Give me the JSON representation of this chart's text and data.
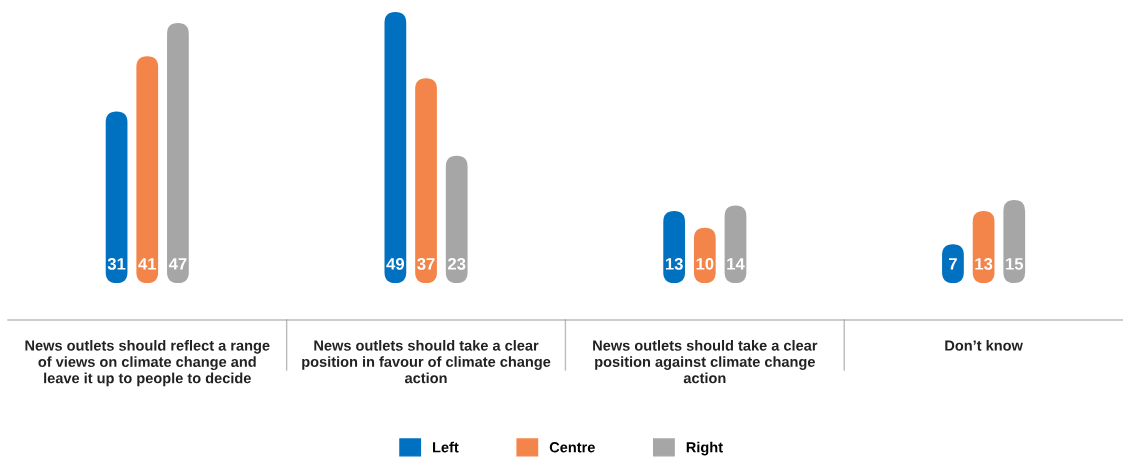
{
  "chart_data": {
    "type": "bar",
    "categories": [
      "News outlets should reflect a range of views on climate change and leave it up to people to decide",
      "News outlets should take a clear position in favour of climate change action",
      "News outlets should take a clear position against climate change action",
      "Don’t know"
    ],
    "series": [
      {
        "name": "Left",
        "color": "#0070c0",
        "values": [
          31,
          49,
          13,
          7
        ]
      },
      {
        "name": "Centre",
        "color": "#f4854a",
        "values": [
          41,
          37,
          10,
          13
        ]
      },
      {
        "name": "Right",
        "color": "#a6a6a6",
        "values": [
          47,
          23,
          14,
          15
        ]
      }
    ],
    "data_labels": true,
    "legend": "bottom",
    "grid": false
  }
}
